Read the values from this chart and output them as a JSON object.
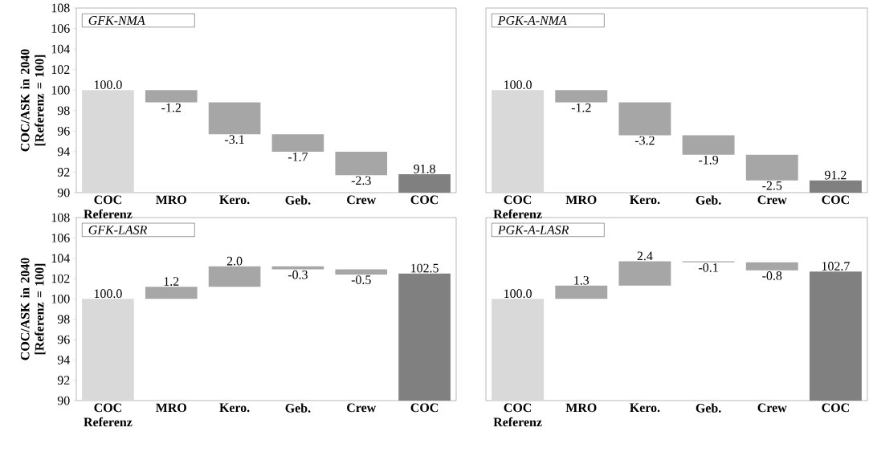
{
  "chart_data": [
    {
      "type": "bar",
      "title": "GFK-NMA",
      "ylabel": "COC/ASK in 2040 [Referenz = 100]",
      "categories": [
        "COC Referenz",
        "MRO",
        "Kero.",
        "Geb.",
        "Crew",
        "COC"
      ],
      "values": [
        100.0,
        -1.2,
        -3.1,
        -1.7,
        -2.3,
        91.8
      ],
      "base": [
        null,
        100.0,
        98.8,
        95.7,
        94.0,
        null
      ],
      "value_labels": [
        "100.0",
        "-1.2",
        "-3.1",
        "-1.7",
        "-2.3",
        "91.8"
      ],
      "colors": [
        "#d9d9d9",
        "#a6a6a6",
        "#a6a6a6",
        "#a6a6a6",
        "#a6a6a6",
        "#808080"
      ],
      "ylim": [
        90,
        108
      ],
      "yticks": [
        90,
        92,
        94,
        96,
        98,
        100,
        102,
        104,
        106,
        108
      ],
      "grid": false
    },
    {
      "type": "bar",
      "title": "PGK-A-NMA",
      "categories": [
        "COC Referenz",
        "MRO",
        "Kero.",
        "Geb.",
        "Crew",
        "COC"
      ],
      "values": [
        100.0,
        -1.2,
        -3.2,
        -1.9,
        -2.5,
        91.2
      ],
      "base": [
        null,
        100.0,
        98.8,
        95.6,
        93.7,
        null
      ],
      "value_labels": [
        "100.0",
        "-1.2",
        "-3.2",
        "-1.9",
        "-2.5",
        "91.2"
      ],
      "colors": [
        "#d9d9d9",
        "#a6a6a6",
        "#a6a6a6",
        "#a6a6a6",
        "#a6a6a6",
        "#808080"
      ],
      "ylim": [
        90,
        108
      ],
      "yticks": [
        90,
        92,
        94,
        96,
        98,
        100,
        102,
        104,
        106,
        108
      ],
      "tick_labels": "x",
      "grid": false
    },
    {
      "type": "bar",
      "title": "GFK-LASR",
      "ylabel": "COC/ASK in 2040 [Referenz = 100]",
      "categories": [
        "COC Referenz",
        "MRO",
        "Kero.",
        "Geb.",
        "Crew",
        "COC"
      ],
      "values": [
        100.0,
        1.2,
        2.0,
        -0.3,
        -0.5,
        102.5
      ],
      "base": [
        null,
        100.0,
        101.2,
        103.2,
        102.9,
        null
      ],
      "value_labels": [
        "100.0",
        "1.2",
        "2.0",
        "-0.3",
        "-0.5",
        "102.5"
      ],
      "colors": [
        "#d9d9d9",
        "#a6a6a6",
        "#a6a6a6",
        "#a6a6a6",
        "#a6a6a6",
        "#808080"
      ],
      "ylim": [
        90,
        108
      ],
      "yticks": [
        90,
        92,
        94,
        96,
        98,
        100,
        102,
        104,
        106,
        108
      ],
      "grid": false
    },
    {
      "type": "bar",
      "title": "PGK-A-LASR",
      "categories": [
        "COC Referenz",
        "MRO",
        "Kero.",
        "Geb.",
        "Crew",
        "COC"
      ],
      "values": [
        100.0,
        1.3,
        2.4,
        -0.1,
        -0.8,
        102.7
      ],
      "base": [
        null,
        100.0,
        101.3,
        103.7,
        103.6,
        null
      ],
      "value_labels": [
        "100.0",
        "1.3",
        "2.4",
        "-0.1",
        "-0.8",
        "102.7"
      ],
      "colors": [
        "#d9d9d9",
        "#a6a6a6",
        "#a6a6a6",
        "#a6a6a6",
        "#a6a6a6",
        "#808080"
      ],
      "ylim": [
        90,
        108
      ],
      "yticks": [
        90,
        92,
        94,
        96,
        98,
        100,
        102,
        104,
        106,
        108
      ],
      "tick_labels": "x",
      "grid": false
    }
  ]
}
